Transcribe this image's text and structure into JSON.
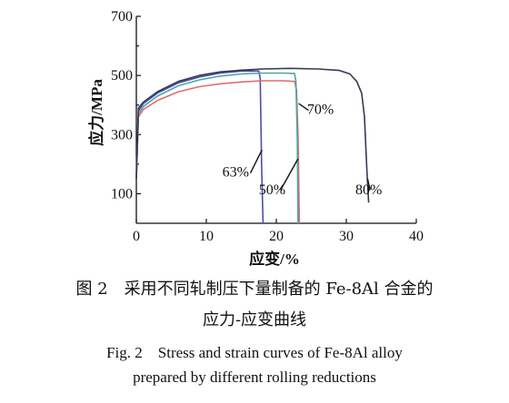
{
  "chart_data": {
    "type": "line",
    "xlabel": "应变/%",
    "ylabel": "应力/MPa",
    "xlim": [
      0,
      40
    ],
    "ylim": [
      0,
      700
    ],
    "x_ticks": [
      0,
      10,
      20,
      30,
      40
    ],
    "y_ticks": [
      100,
      300,
      500,
      700
    ],
    "grid": false,
    "series": [
      {
        "name": "63%",
        "color": "#4a4fa8",
        "points": [
          [
            0,
            150
          ],
          [
            0.3,
            380
          ],
          [
            1,
            405
          ],
          [
            3,
            440
          ],
          [
            6,
            475
          ],
          [
            9,
            495
          ],
          [
            12,
            508
          ],
          [
            15,
            515
          ],
          [
            17.5,
            515
          ],
          [
            17.7,
            490
          ],
          [
            17.9,
            200
          ],
          [
            18.1,
            0
          ]
        ]
      },
      {
        "name": "50%",
        "color": "#e06c6c",
        "points": [
          [
            0,
            150
          ],
          [
            0.3,
            360
          ],
          [
            1,
            385
          ],
          [
            3,
            415
          ],
          [
            6,
            445
          ],
          [
            9,
            462
          ],
          [
            12,
            472
          ],
          [
            15,
            478
          ],
          [
            18,
            482
          ],
          [
            21,
            482
          ],
          [
            22.6,
            480
          ],
          [
            22.9,
            450
          ],
          [
            23.1,
            300
          ],
          [
            23.3,
            0
          ]
        ]
      },
      {
        "name": "70%",
        "color": "#4aa7a7",
        "points": [
          [
            0,
            150
          ],
          [
            0.3,
            370
          ],
          [
            1,
            395
          ],
          [
            3,
            430
          ],
          [
            6,
            465
          ],
          [
            9,
            485
          ],
          [
            12,
            498
          ],
          [
            15,
            505
          ],
          [
            18,
            508
          ],
          [
            21,
            508
          ],
          [
            22.6,
            507
          ],
          [
            22.8,
            480
          ],
          [
            23.0,
            280
          ],
          [
            23.1,
            0
          ]
        ]
      },
      {
        "name": "80%",
        "color": "#383850",
        "points": [
          [
            0,
            150
          ],
          [
            0.3,
            390
          ],
          [
            1,
            410
          ],
          [
            3,
            445
          ],
          [
            6,
            480
          ],
          [
            9,
            500
          ],
          [
            12,
            512
          ],
          [
            15,
            518
          ],
          [
            18,
            522
          ],
          [
            22,
            524
          ],
          [
            26,
            522
          ],
          [
            29,
            517
          ],
          [
            30.5,
            505
          ],
          [
            31.5,
            480
          ],
          [
            32.2,
            440
          ],
          [
            32.6,
            360
          ],
          [
            32.8,
            250
          ],
          [
            33.0,
            150
          ],
          [
            33.2,
            70
          ]
        ]
      }
    ],
    "annotations": [
      {
        "text": "63%",
        "x": 14.2,
        "y": 158,
        "line_from": [
          16.3,
          170
        ],
        "line_to": [
          17.95,
          248
        ]
      },
      {
        "text": "50%",
        "x": 19.4,
        "y": 98,
        "line_from": [
          20.6,
          112
        ],
        "line_to": [
          23.1,
          218
        ]
      },
      {
        "text": "70%",
        "x": 26.3,
        "y": 370,
        "line_from": [
          24.6,
          382
        ],
        "line_to": [
          23.2,
          405
        ]
      },
      {
        "text": "80%",
        "x": 33.2,
        "y": 98,
        "line_from": [
          33.4,
          112
        ],
        "line_to": [
          33.05,
          150
        ]
      }
    ]
  },
  "caption": {
    "zh_line1": "图 2　采用不同轧制压下量制备的 Fe-8Al 合金的",
    "zh_line2": "应力-应变曲线",
    "en_line1": "Fig. 2　Stress and strain curves of Fe-8Al alloy",
    "en_line2": "prepared by different rolling reductions"
  }
}
